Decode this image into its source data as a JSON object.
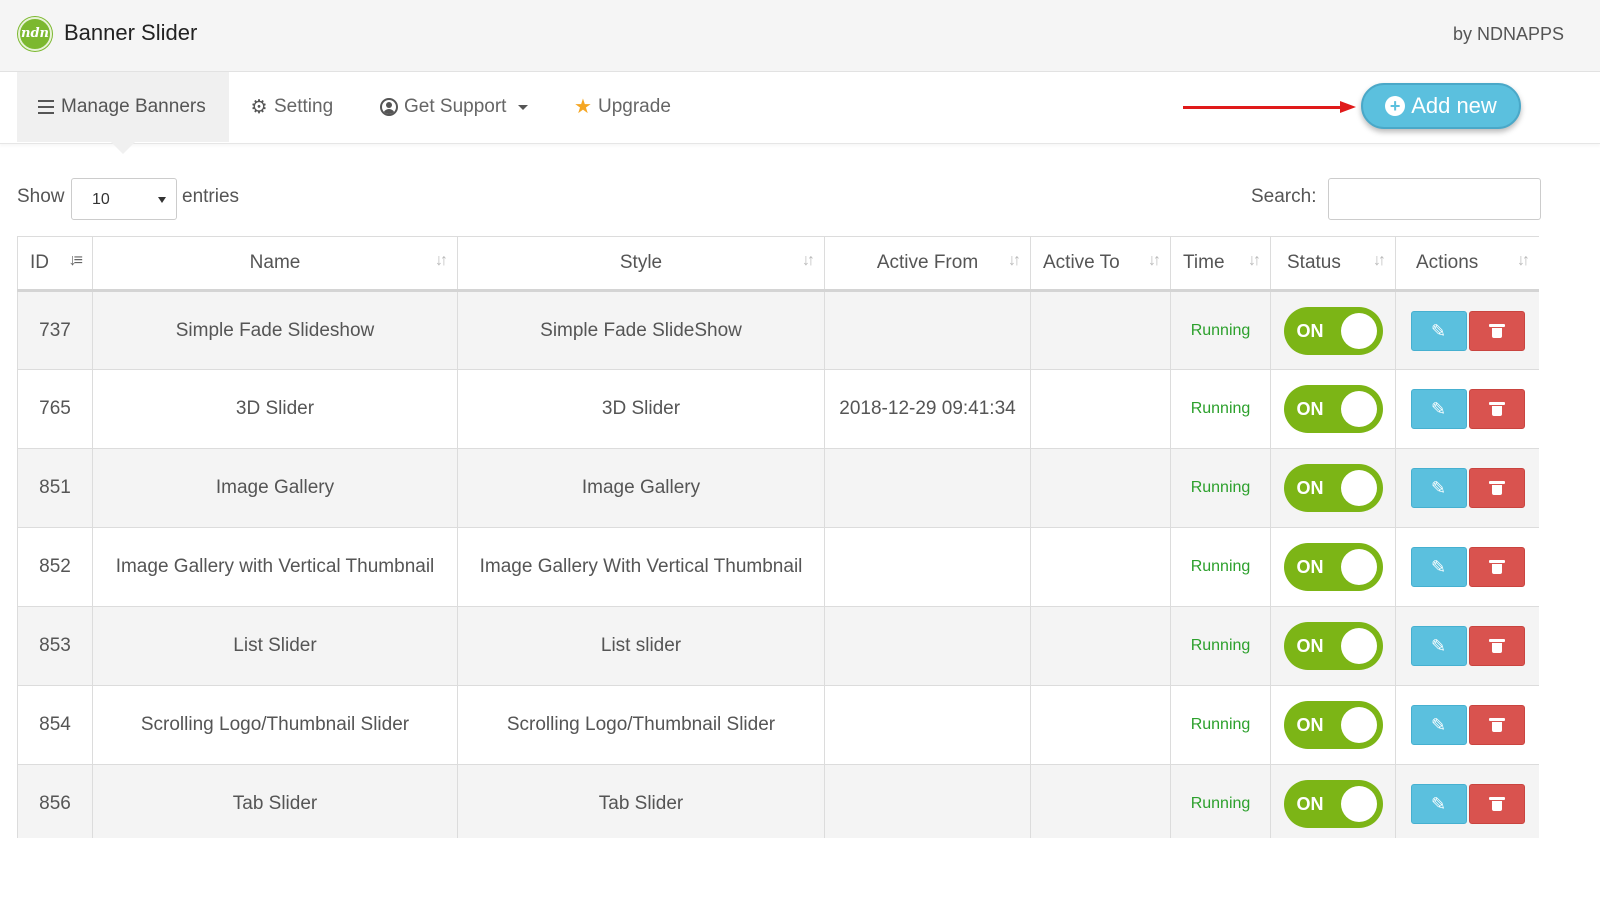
{
  "app": {
    "logo_text": "ndn",
    "title": "Banner Slider",
    "by_line": "by NDNAPPS"
  },
  "nav": {
    "tabs": [
      {
        "label": "Manage Banners",
        "icon": "list-icon",
        "active": true
      },
      {
        "label": "Setting",
        "icon": "gear-icon"
      },
      {
        "label": "Get Support",
        "icon": "user-circle-icon",
        "dropdown": true
      },
      {
        "label": "Upgrade",
        "icon": "star-icon"
      }
    ],
    "add_new_label": "Add new"
  },
  "controls": {
    "show_label": "Show",
    "page_size": "10",
    "entries_label": "entries",
    "search_label": "Search:",
    "search_value": ""
  },
  "table": {
    "columns": [
      "ID",
      "Name",
      "Style",
      "Active From",
      "Active To",
      "Time",
      "Status",
      "Actions"
    ],
    "rows": [
      {
        "id": "737",
        "name": "Simple Fade Slideshow",
        "style": "Simple Fade SlideShow",
        "active_from": "",
        "active_to": "",
        "time": "Running",
        "status": "ON"
      },
      {
        "id": "765",
        "name": "3D Slider",
        "style": "3D Slider",
        "active_from": "2018-12-29 09:41:34",
        "active_to": "",
        "time": "Running",
        "status": "ON"
      },
      {
        "id": "851",
        "name": "Image Gallery",
        "style": "Image Gallery",
        "active_from": "",
        "active_to": "",
        "time": "Running",
        "status": "ON"
      },
      {
        "id": "852",
        "name": "Image Gallery with Vertical Thumbnail",
        "style": "Image Gallery With Vertical Thumbnail",
        "active_from": "",
        "active_to": "",
        "time": "Running",
        "status": "ON"
      },
      {
        "id": "853",
        "name": "List Slider",
        "style": "List slider",
        "active_from": "",
        "active_to": "",
        "time": "Running",
        "status": "ON"
      },
      {
        "id": "854",
        "name": "Scrolling Logo/Thumbnail Slider",
        "style": "Scrolling Logo/Thumbnail Slider",
        "active_from": "",
        "active_to": "",
        "time": "Running",
        "status": "ON"
      },
      {
        "id": "856",
        "name": "Tab Slider",
        "style": "Tab Slider",
        "active_from": "",
        "active_to": "",
        "time": "Running",
        "status": "ON"
      }
    ]
  },
  "colors": {
    "brand_green": "#7cb82f",
    "toggle_green": "#7cb516",
    "info_blue": "#5bc0de",
    "danger_red": "#d9534f",
    "running_green": "#2ca02c",
    "annotation_arrow": "#e01a1a"
  }
}
